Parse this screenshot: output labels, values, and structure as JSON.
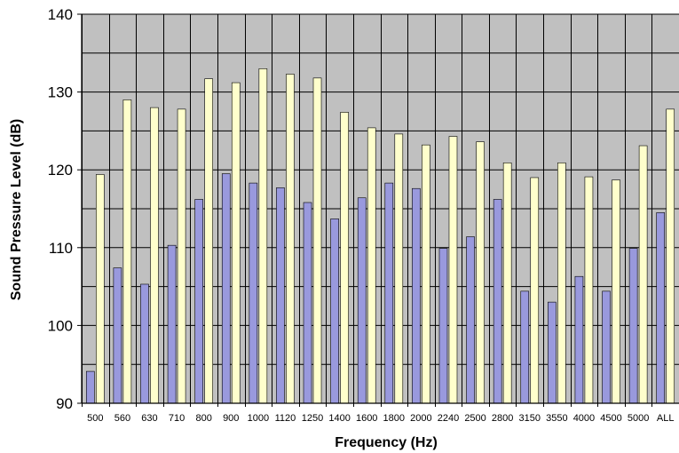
{
  "chart_data": {
    "type": "bar",
    "title": "",
    "xlabel": "Frequency (Hz)",
    "ylabel": "Sound Pressure Level (dB)",
    "ylim": [
      90,
      140
    ],
    "yticks": [
      90,
      100,
      110,
      120,
      130,
      140
    ],
    "grid": true,
    "legend": "none",
    "categories": [
      "500",
      "560",
      "630",
      "710",
      "800",
      "900",
      "1000",
      "1120",
      "1250",
      "1400",
      "1600",
      "1800",
      "2000",
      "2240",
      "2500",
      "2800",
      "3150",
      "3550",
      "4000",
      "4500",
      "5000",
      "ALL"
    ],
    "series": [
      {
        "color": "#9999dd",
        "values": [
          94.1,
          107.4,
          105.3,
          110.3,
          116.2,
          119.5,
          118.3,
          117.7,
          115.8,
          113.7,
          116.4,
          118.3,
          117.6,
          109.9,
          111.4,
          116.2,
          104.4,
          103.0,
          106.3,
          104.4,
          109.9,
          114.5
        ]
      },
      {
        "color": "#ffffcc",
        "values": [
          119.4,
          129.0,
          128.0,
          127.8,
          131.7,
          131.2,
          133.0,
          132.3,
          131.8,
          127.4,
          125.4,
          124.6,
          123.2,
          124.3,
          123.6,
          120.9,
          119.0,
          120.9,
          119.1,
          118.7,
          123.1,
          127.8
        ]
      }
    ]
  },
  "colors": {
    "plot_background": "#c0c0c0",
    "grid": "#000000",
    "bar_outline": "#000000"
  }
}
